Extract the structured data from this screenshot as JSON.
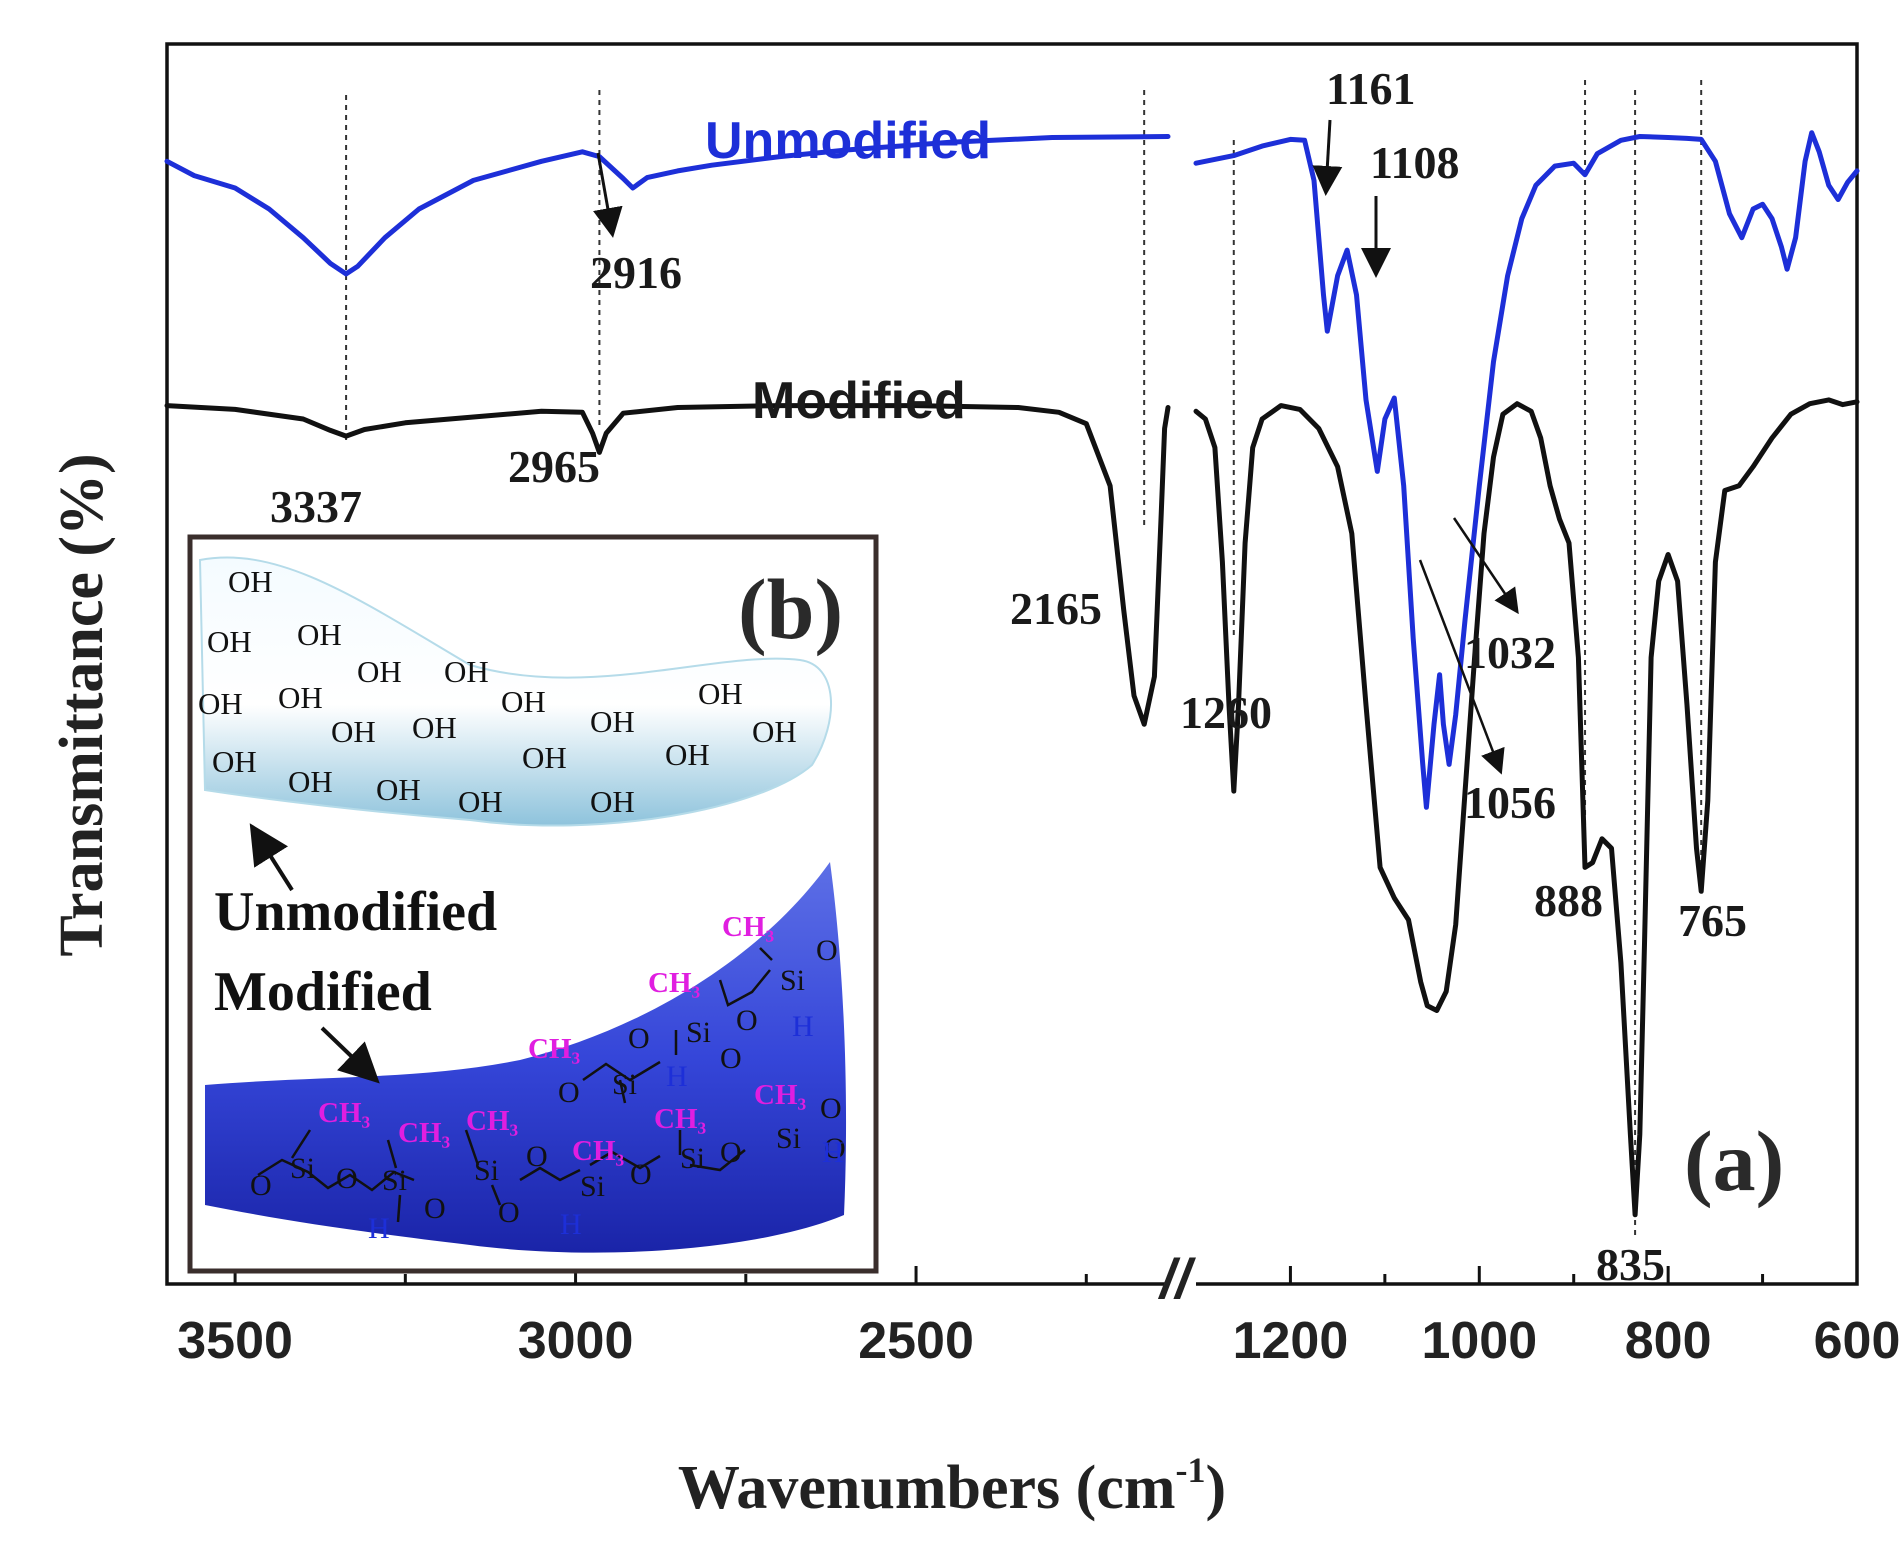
{
  "chart_data": {
    "type": "line",
    "title": "",
    "panel_label": "(a)",
    "xlabel_main": "Wavenumbers (cm",
    "xlabel_sup": "-1",
    "xlabel_close": ")",
    "ylabel": "Transmittance (%)",
    "axis_break": "//",
    "x_segments": [
      {
        "range": [
          3600,
          2130
        ],
        "ticks": [
          "3500",
          "3000",
          "2500"
        ],
        "tick_values": [
          3500,
          3000,
          2500
        ]
      },
      {
        "range": [
          1300,
          600
        ],
        "ticks": [
          "1200",
          "1000",
          "800",
          "600"
        ],
        "tick_values": [
          1200,
          1000,
          800,
          600
        ]
      }
    ],
    "series": [
      {
        "name": "Unmodified",
        "color": "#1d2fd8",
        "points": [
          [
            3600,
            92.0
          ],
          [
            3560,
            90.5
          ],
          [
            3500,
            89.2
          ],
          [
            3450,
            87.0
          ],
          [
            3400,
            84.0
          ],
          [
            3360,
            81.3
          ],
          [
            3337,
            80.2
          ],
          [
            3320,
            81.0
          ],
          [
            3280,
            84.0
          ],
          [
            3230,
            87.0
          ],
          [
            3150,
            90.0
          ],
          [
            3050,
            92.0
          ],
          [
            2990,
            93.0
          ],
          [
            2965,
            92.5
          ],
          [
            2930,
            90.2
          ],
          [
            2916,
            89.2
          ],
          [
            2895,
            90.3
          ],
          [
            2850,
            91.0
          ],
          [
            2800,
            91.6
          ],
          [
            2700,
            92.5
          ],
          [
            2600,
            93.2
          ],
          [
            2450,
            94.0
          ],
          [
            2300,
            94.5
          ],
          [
            2130,
            94.6
          ],
          [
            1300,
            91.8
          ],
          [
            1260,
            92.6
          ],
          [
            1230,
            93.6
          ],
          [
            1200,
            94.3
          ],
          [
            1185,
            94.2
          ],
          [
            1175,
            90.0
          ],
          [
            1165,
            78.0
          ],
          [
            1161,
            74.2
          ],
          [
            1150,
            80.0
          ],
          [
            1140,
            82.7
          ],
          [
            1130,
            78.0
          ],
          [
            1120,
            67.0
          ],
          [
            1108,
            59.5
          ],
          [
            1100,
            65.0
          ],
          [
            1090,
            67.2
          ],
          [
            1080,
            58.0
          ],
          [
            1070,
            42.0
          ],
          [
            1060,
            29.0
          ],
          [
            1056,
            24.3
          ],
          [
            1048,
            33.0
          ],
          [
            1042,
            38.2
          ],
          [
            1038,
            33.0
          ],
          [
            1032,
            28.8
          ],
          [
            1025,
            34.0
          ],
          [
            1015,
            44.0
          ],
          [
            1000,
            58.0
          ],
          [
            985,
            71.0
          ],
          [
            970,
            80.0
          ],
          [
            955,
            86.0
          ],
          [
            940,
            89.5
          ],
          [
            920,
            91.5
          ],
          [
            900,
            91.8
          ],
          [
            888,
            90.6
          ],
          [
            875,
            92.8
          ],
          [
            850,
            94.2
          ],
          [
            830,
            94.6
          ],
          [
            800,
            94.5
          ],
          [
            780,
            94.4
          ],
          [
            765,
            94.3
          ],
          [
            750,
            92.0
          ],
          [
            735,
            86.5
          ],
          [
            722,
            84.0
          ],
          [
            710,
            87.0
          ],
          [
            700,
            87.5
          ],
          [
            690,
            86.0
          ],
          [
            680,
            83.0
          ],
          [
            674,
            80.7
          ],
          [
            665,
            84.0
          ],
          [
            655,
            92.0
          ],
          [
            648,
            95.0
          ],
          [
            640,
            93.0
          ],
          [
            630,
            89.5
          ],
          [
            620,
            88.0
          ],
          [
            610,
            89.8
          ],
          [
            600,
            91.0
          ]
        ]
      },
      {
        "name": "Modified",
        "color": "#111111",
        "points": [
          [
            3600,
            66.4
          ],
          [
            3500,
            66.0
          ],
          [
            3400,
            65.0
          ],
          [
            3360,
            63.8
          ],
          [
            3337,
            63.2
          ],
          [
            3310,
            63.9
          ],
          [
            3250,
            64.6
          ],
          [
            3150,
            65.2
          ],
          [
            3050,
            65.8
          ],
          [
            2990,
            65.7
          ],
          [
            2975,
            63.5
          ],
          [
            2965,
            61.5
          ],
          [
            2955,
            63.5
          ],
          [
            2930,
            65.6
          ],
          [
            2850,
            66.2
          ],
          [
            2700,
            66.4
          ],
          [
            2500,
            66.4
          ],
          [
            2350,
            66.2
          ],
          [
            2290,
            65.7
          ],
          [
            2250,
            64.5
          ],
          [
            2215,
            58.0
          ],
          [
            2195,
            45.0
          ],
          [
            2180,
            36.0
          ],
          [
            2165,
            33.0
          ],
          [
            2150,
            38.0
          ],
          [
            2140,
            55.0
          ],
          [
            2135,
            64.0
          ],
          [
            2130,
            66.2
          ],
          [
            1300,
            65.8
          ],
          [
            1290,
            65.0
          ],
          [
            1280,
            62.0
          ],
          [
            1272,
            50.0
          ],
          [
            1265,
            35.0
          ],
          [
            1260,
            26.0
          ],
          [
            1255,
            35.0
          ],
          [
            1248,
            52.0
          ],
          [
            1240,
            62.0
          ],
          [
            1230,
            65.0
          ],
          [
            1210,
            66.4
          ],
          [
            1190,
            66.0
          ],
          [
            1170,
            64.0
          ],
          [
            1150,
            60.0
          ],
          [
            1135,
            53.0
          ],
          [
            1120,
            35.0
          ],
          [
            1105,
            18.0
          ],
          [
            1090,
            14.8
          ],
          [
            1075,
            12.5
          ],
          [
            1062,
            6.0
          ],
          [
            1055,
            3.5
          ],
          [
            1045,
            3.0
          ],
          [
            1035,
            5.0
          ],
          [
            1025,
            12.0
          ],
          [
            1015,
            26.0
          ],
          [
            1005,
            40.0
          ],
          [
            995,
            53.0
          ],
          [
            985,
            61.0
          ],
          [
            975,
            65.5
          ],
          [
            960,
            66.6
          ],
          [
            945,
            65.8
          ],
          [
            935,
            63.0
          ],
          [
            925,
            58.0
          ],
          [
            915,
            54.5
          ],
          [
            905,
            52.0
          ],
          [
            895,
            40.0
          ],
          [
            888,
            18.0
          ],
          [
            880,
            18.5
          ],
          [
            870,
            21.0
          ],
          [
            860,
            20.0
          ],
          [
            850,
            8.0
          ],
          [
            840,
            -10.0
          ],
          [
            835,
            -18.4
          ],
          [
            830,
            -10.0
          ],
          [
            825,
            10.0
          ],
          [
            818,
            40.0
          ],
          [
            810,
            48.0
          ],
          [
            800,
            50.8
          ],
          [
            790,
            48.0
          ],
          [
            780,
            35.0
          ],
          [
            770,
            20.0
          ],
          [
            765,
            15.5
          ],
          [
            758,
            25.0
          ],
          [
            750,
            50.0
          ],
          [
            740,
            57.5
          ],
          [
            725,
            58.0
          ],
          [
            710,
            60.0
          ],
          [
            690,
            63.0
          ],
          [
            670,
            65.5
          ],
          [
            650,
            66.6
          ],
          [
            630,
            67.0
          ],
          [
            615,
            66.5
          ],
          [
            600,
            66.8
          ]
        ]
      }
    ],
    "peak_annotations": [
      {
        "label": "3337",
        "wavenumber": 3337
      },
      {
        "label": "2916",
        "wavenumber": 2916
      },
      {
        "label": "2965",
        "wavenumber": 2965
      },
      {
        "label": "2165",
        "wavenumber": 2165
      },
      {
        "label": "1260",
        "wavenumber": 1260
      },
      {
        "label": "1161",
        "wavenumber": 1161
      },
      {
        "label": "1108",
        "wavenumber": 1108
      },
      {
        "label": "1032",
        "wavenumber": 1032
      },
      {
        "label": "1056",
        "wavenumber": 1056
      },
      {
        "label": "888",
        "wavenumber": 888
      },
      {
        "label": "835",
        "wavenumber": 835
      },
      {
        "label": "765",
        "wavenumber": 765
      }
    ],
    "series_labels": {
      "unmodified": "Unmodified",
      "modified": "Modified"
    }
  },
  "inset": {
    "panel_label": "(b)",
    "unmodified_label": "Unmodified",
    "modified_label": "Modified",
    "hydroxyl_group": "OH",
    "methyl_group": "CH₃",
    "silicon": "Si",
    "oxygen": "O",
    "hydrogen": "H"
  },
  "colors": {
    "unmodified": "#1d2fd8",
    "modified": "#111111",
    "methyl": "#e01ee0",
    "hydride": "#1d2fd8"
  }
}
